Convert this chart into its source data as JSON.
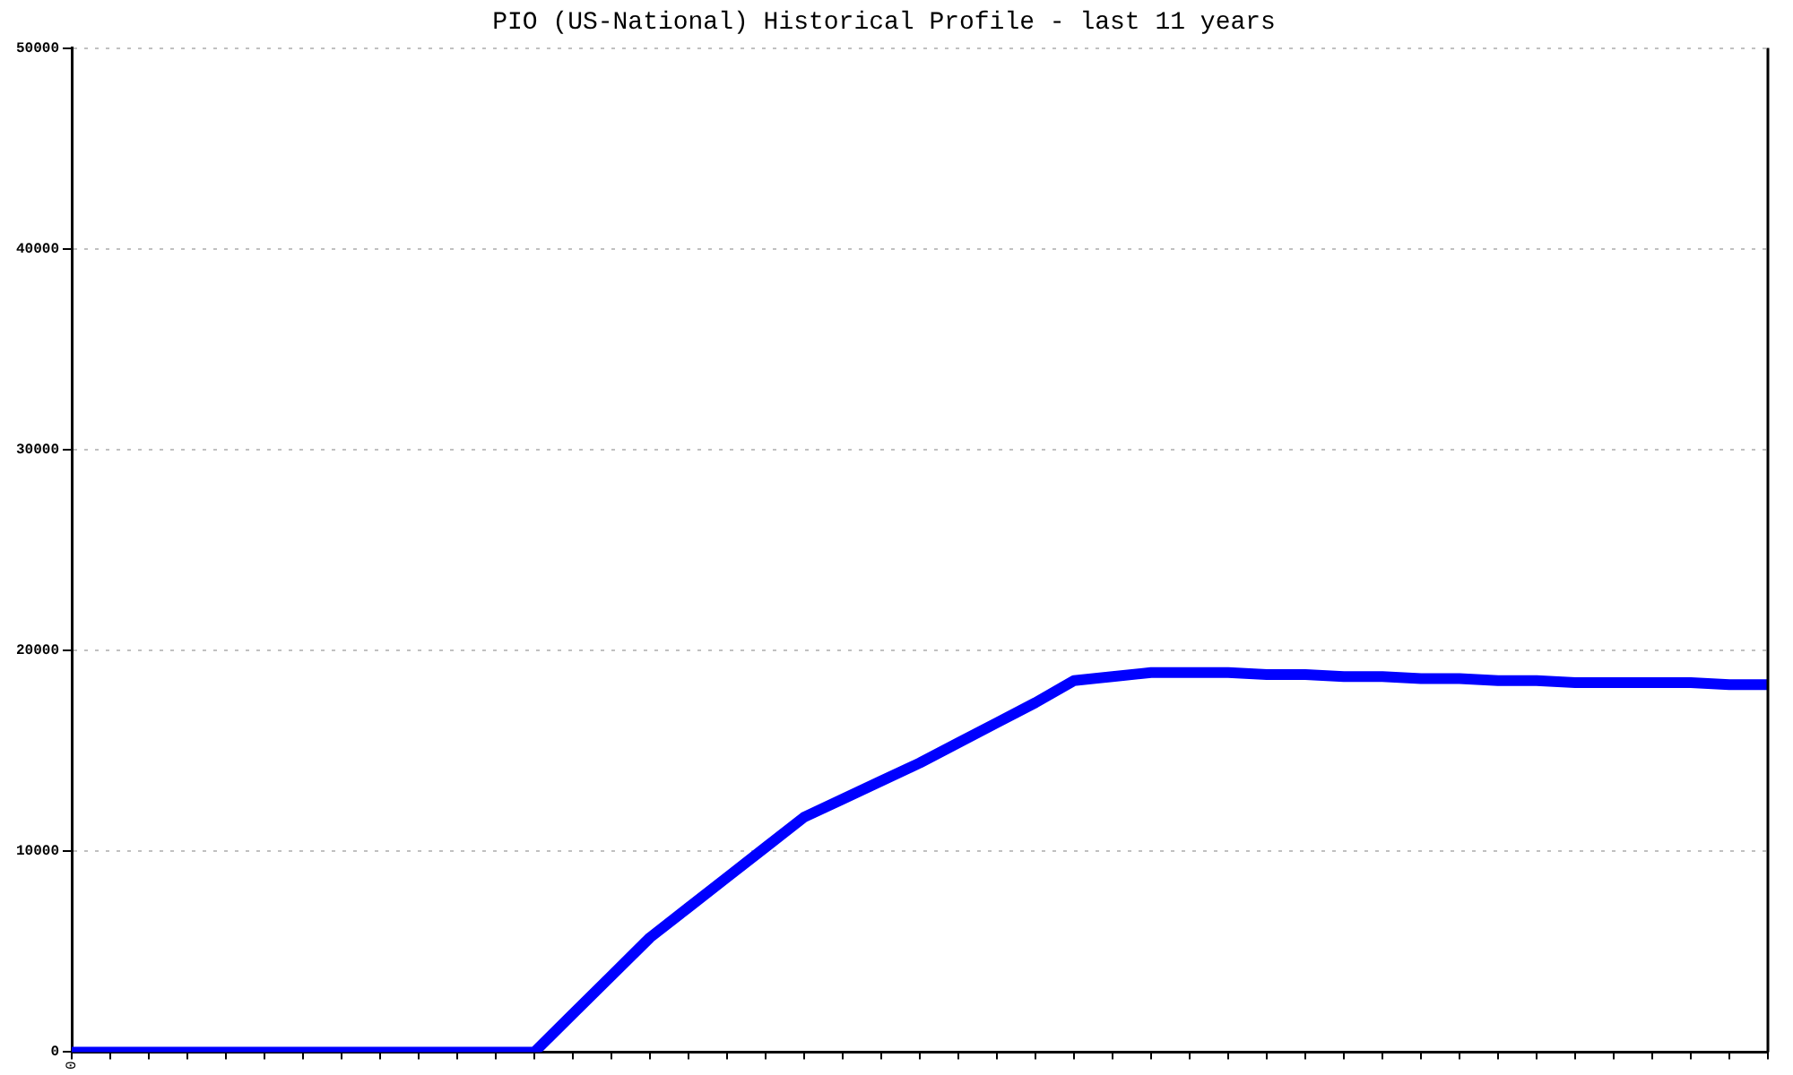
{
  "chart_data": {
    "type": "line",
    "title": "PIO (US-National) Historical Profile - last 11 years",
    "categories": [
      "0",
      null,
      null,
      null,
      null,
      null,
      null,
      null,
      null,
      null,
      null,
      null,
      null,
      null,
      null,
      null,
      null,
      null,
      null,
      null,
      null,
      null,
      null,
      null,
      null,
      null,
      null,
      null,
      null,
      null,
      null,
      null,
      null,
      null,
      null,
      null,
      null,
      null,
      null,
      null,
      null,
      null,
      null,
      null,
      null
    ],
    "series": [
      {
        "color": "#0000ff",
        "values": [
          0,
          0,
          0,
          0,
          0,
          0,
          0,
          0,
          0,
          0,
          0,
          0,
          0,
          1900,
          3800,
          5700,
          7200,
          8700,
          10200,
          11700,
          12600,
          13500,
          14400,
          15400,
          16400,
          17400,
          18500,
          18700,
          18900,
          18900,
          18900,
          18800,
          18800,
          18700,
          18700,
          18600,
          18600,
          18500,
          18500,
          18400,
          18400,
          18400,
          18400,
          18300,
          18300
        ]
      }
    ],
    "ylim": [
      0,
      50000
    ],
    "yticks": [
      0,
      10000,
      20000,
      30000,
      40000,
      50000
    ],
    "grid": "y",
    "legend": false,
    "marker": "none",
    "line_style": "solid"
  }
}
